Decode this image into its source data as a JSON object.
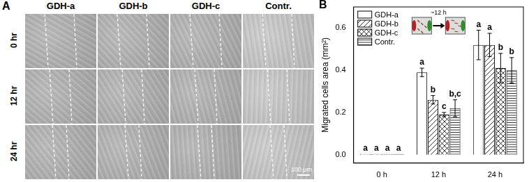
{
  "panel_a": {
    "label": "A",
    "columns": [
      "GDH-a",
      "GDH-b",
      "GDH-c",
      "Contr."
    ],
    "rows": [
      "0 hr",
      "12 hr",
      "24 hr"
    ],
    "scale_bar": "100 μm"
  },
  "chart_data": {
    "type": "bar",
    "panel_label": "B",
    "y_label": "Migrated cells area (mm²)",
    "categories": [
      "0 h",
      "12 h",
      "24 h"
    ],
    "series": [
      {
        "name": "GDH-a",
        "color": "#ffffff",
        "values": [
          0.003,
          0.39,
          0.52
        ],
        "errors": [
          0,
          0.02,
          0.07
        ],
        "letters": [
          "a",
          "a",
          "a"
        ]
      },
      {
        "name": "GDH-b",
        "color": "#ffffff",
        "values": [
          0.003,
          0.26,
          0.52
        ],
        "errors": [
          0,
          0.02,
          0.055
        ],
        "letters": [
          "a",
          "b",
          "a"
        ]
      },
      {
        "name": "GDH-c",
        "color": "#ffffff",
        "values": [
          0.003,
          0.19,
          0.41
        ],
        "errors": [
          0,
          0.01,
          0.07
        ],
        "letters": [
          "a",
          "c",
          "b"
        ]
      },
      {
        "name": "Contr.",
        "color": "#ffffff",
        "values": [
          0.003,
          0.22,
          0.4
        ],
        "errors": [
          0,
          0.04,
          0.06
        ],
        "letters": [
          "a",
          "b,c",
          "b"
        ]
      }
    ],
    "ylim": [
      -0.04,
      0.7
    ],
    "yticks": [
      {
        "value": 0,
        "label": "0.0"
      },
      0.2,
      0.4,
      0.6
    ],
    "grid": false,
    "legend": "upper left",
    "annotations": [
      "~12 h"
    ]
  }
}
